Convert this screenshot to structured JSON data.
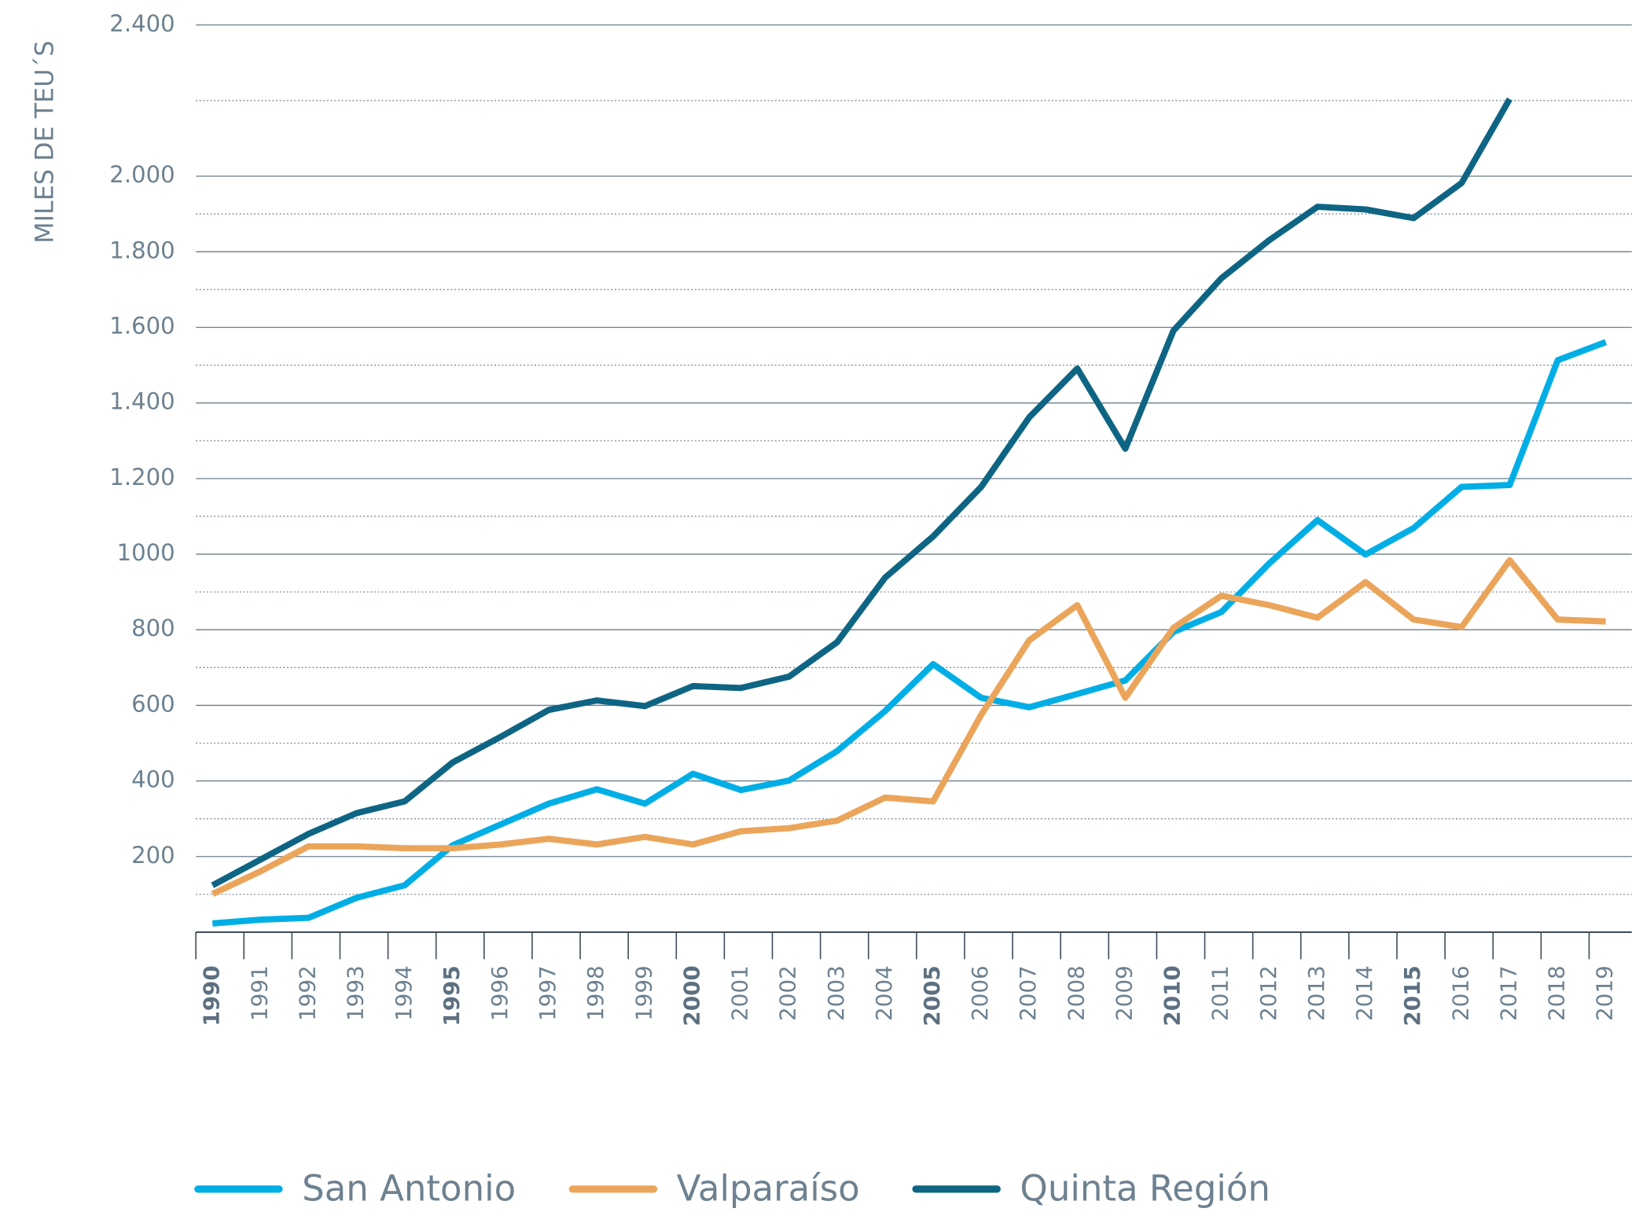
{
  "chart_data": {
    "type": "line",
    "y_label": "MILES DE TEU´S",
    "categories": [
      "1990",
      "1991",
      "1992",
      "1993",
      "1994",
      "1995",
      "1996",
      "1997",
      "1998",
      "1999",
      "2000",
      "2001",
      "2002",
      "2003",
      "2004",
      "2005",
      "2006",
      "2007",
      "2008",
      "2009",
      "2010",
      "2011",
      "2012",
      "2013",
      "2014",
      "2015",
      "2016",
      "2017",
      "2018",
      "2019"
    ],
    "series": [
      {
        "name": "San Antonio",
        "color": "#00aee6",
        "values": [
          23,
          33,
          38,
          91,
          124,
          230,
          285,
          340,
          378,
          340,
          419,
          376,
          401,
          479,
          585,
          709,
          620,
          595,
          630,
          666,
          794,
          847,
          976,
          1090,
          999,
          1069,
          1178,
          1183,
          1513,
          1561
        ]
      },
      {
        "name": "Valparaíso",
        "color": "#eba55b",
        "values": [
          101,
          161,
          227,
          227,
          222,
          222,
          232,
          247,
          232,
          252,
          232,
          267,
          275,
          295,
          356,
          346,
          575,
          772,
          865,
          620,
          805,
          890,
          865,
          832,
          926,
          827,
          807,
          984,
          827,
          822
        ]
      },
      {
        "name": "Quinta Región",
        "color": "#0e6583",
        "values": [
          124,
          192,
          260,
          315,
          346,
          449,
          517,
          588,
          613,
          598,
          651,
          646,
          676,
          767,
          938,
          1047,
          1178,
          1362,
          1491,
          1279,
          1591,
          1730,
          1831,
          1919,
          1912,
          1889,
          1982,
          2204,
          null,
          null
        ]
      }
    ],
    "ylim": [
      0,
      2400
    ],
    "yticks": [
      200,
      400,
      600,
      800,
      1000,
      {
        "value": 1200,
        "label": "1.200"
      },
      {
        "value": 1400,
        "label": "1.400"
      },
      {
        "value": 1600,
        "label": "1.600"
      },
      {
        "value": 1800,
        "label": "1.800"
      },
      {
        "value": 2000,
        "label": "2.000"
      },
      {
        "value": 2400,
        "label": "2.400"
      }
    ],
    "grid": true,
    "legend": "bottom"
  }
}
